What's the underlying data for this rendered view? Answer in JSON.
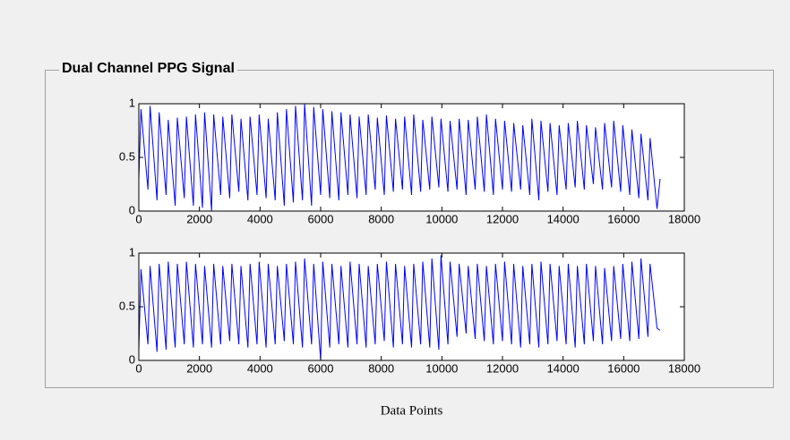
{
  "panel": {
    "title": "Dual Channel PPG Signal"
  },
  "chart_data": [
    {
      "type": "line",
      "xlim": [
        0,
        18000
      ],
      "ylim": [
        0,
        1
      ],
      "xticks": [
        0,
        2000,
        4000,
        6000,
        8000,
        10000,
        12000,
        14000,
        16000,
        18000
      ],
      "yticks": [
        0,
        0.5,
        1
      ],
      "x": [
        0,
        70,
        300,
        370,
        600,
        670,
        900,
        970,
        1200,
        1270,
        1500,
        1570,
        1800,
        1870,
        2100,
        2170,
        2400,
        2470,
        2700,
        2770,
        3000,
        3070,
        3300,
        3370,
        3600,
        3670,
        3900,
        3970,
        4200,
        4270,
        4500,
        4570,
        4800,
        4870,
        5100,
        5170,
        5400,
        5470,
        5700,
        5770,
        6000,
        6070,
        6300,
        6370,
        6600,
        6670,
        6900,
        6970,
        7200,
        7270,
        7500,
        7570,
        7800,
        7870,
        8100,
        8170,
        8400,
        8470,
        8700,
        8770,
        9000,
        9070,
        9300,
        9370,
        9600,
        9670,
        9900,
        9970,
        10200,
        10270,
        10500,
        10570,
        10800,
        10870,
        11100,
        11170,
        11400,
        11470,
        11700,
        11770,
        12000,
        12070,
        12300,
        12370,
        12600,
        12670,
        12900,
        12970,
        13200,
        13270,
        13500,
        13570,
        13800,
        13870,
        14100,
        14170,
        14400,
        14470,
        14700,
        14770,
        15000,
        15070,
        15300,
        15370,
        15600,
        15670,
        15900,
        15970,
        16200,
        16270,
        16500,
        16570,
        16800,
        16870,
        17100,
        17200
      ],
      "series": [
        {
          "color": "#0000ff",
          "values": [
            0.3,
            0.95,
            0.2,
            0.98,
            0.1,
            0.92,
            0.15,
            0.85,
            0.05,
            0.87,
            0.12,
            0.88,
            0.05,
            0.9,
            0.03,
            0.92,
            0.0,
            0.9,
            0.15,
            0.88,
            0.12,
            0.9,
            0.18,
            0.86,
            0.1,
            0.88,
            0.15,
            0.9,
            0.12,
            0.86,
            0.1,
            0.92,
            0.05,
            0.95,
            0.08,
            0.98,
            0.1,
            1.0,
            0.05,
            0.97,
            0.15,
            0.95,
            0.12,
            0.93,
            0.1,
            0.92,
            0.15,
            0.9,
            0.12,
            0.88,
            0.15,
            0.9,
            0.2,
            0.87,
            0.15,
            0.89,
            0.18,
            0.86,
            0.2,
            0.88,
            0.15,
            0.9,
            0.18,
            0.85,
            0.2,
            0.88,
            0.22,
            0.86,
            0.18,
            0.84,
            0.2,
            0.86,
            0.15,
            0.85,
            0.2,
            0.88,
            0.18,
            0.9,
            0.15,
            0.86,
            0.2,
            0.84,
            0.18,
            0.82,
            0.2,
            0.8,
            0.15,
            0.86,
            0.1,
            0.84,
            0.18,
            0.82,
            0.15,
            0.8,
            0.2,
            0.82,
            0.22,
            0.84,
            0.2,
            0.8,
            0.25,
            0.78,
            0.2,
            0.82,
            0.22,
            0.84,
            0.18,
            0.8,
            0.15,
            0.76,
            0.12,
            0.72,
            0.1,
            0.68,
            0.02,
            0.3
          ]
        }
      ]
    },
    {
      "type": "line",
      "xlim": [
        0,
        18000
      ],
      "ylim": [
        0,
        1
      ],
      "xticks": [
        0,
        2000,
        4000,
        6000,
        8000,
        10000,
        12000,
        14000,
        16000,
        18000
      ],
      "yticks": [
        0,
        0.5,
        1
      ],
      "xlabel": "Data Points",
      "x": [
        0,
        70,
        300,
        370,
        600,
        670,
        900,
        970,
        1200,
        1270,
        1500,
        1570,
        1800,
        1870,
        2100,
        2170,
        2400,
        2470,
        2700,
        2770,
        3000,
        3070,
        3300,
        3370,
        3600,
        3670,
        3900,
        3970,
        4200,
        4270,
        4500,
        4570,
        4800,
        4870,
        5100,
        5170,
        5400,
        5470,
        5700,
        5770,
        6000,
        6070,
        6300,
        6370,
        6600,
        6670,
        6900,
        6970,
        7200,
        7270,
        7500,
        7570,
        7800,
        7870,
        8100,
        8170,
        8400,
        8470,
        8700,
        8770,
        9000,
        9070,
        9300,
        9370,
        9600,
        9670,
        9900,
        9970,
        10200,
        10270,
        10500,
        10570,
        10800,
        10870,
        11100,
        11170,
        11400,
        11470,
        11700,
        11770,
        12000,
        12070,
        12300,
        12370,
        12600,
        12670,
        12900,
        12970,
        13200,
        13270,
        13500,
        13570,
        13800,
        13870,
        14100,
        14170,
        14400,
        14470,
        14700,
        14770,
        15000,
        15070,
        15300,
        15370,
        15600,
        15670,
        15900,
        15970,
        16200,
        16270,
        16500,
        16570,
        16800,
        16870,
        17100,
        17200
      ],
      "series": [
        {
          "color": "#0000ff",
          "values": [
            0.1,
            0.85,
            0.15,
            0.88,
            0.08,
            0.9,
            0.1,
            0.92,
            0.12,
            0.9,
            0.15,
            0.92,
            0.12,
            0.9,
            0.15,
            0.88,
            0.12,
            0.9,
            0.15,
            0.88,
            0.18,
            0.9,
            0.15,
            0.88,
            0.12,
            0.9,
            0.15,
            0.92,
            0.12,
            0.9,
            0.15,
            0.88,
            0.18,
            0.9,
            0.15,
            0.92,
            0.12,
            0.95,
            0.15,
            0.9,
            0.0,
            0.92,
            0.12,
            0.9,
            0.15,
            0.88,
            0.12,
            0.92,
            0.15,
            0.9,
            0.12,
            0.88,
            0.15,
            0.9,
            0.18,
            0.92,
            0.12,
            0.9,
            0.15,
            0.88,
            0.12,
            0.9,
            0.15,
            0.92,
            0.12,
            0.95,
            0.1,
            0.98,
            0.15,
            0.92,
            0.22,
            0.9,
            0.25,
            0.88,
            0.2,
            0.9,
            0.18,
            0.88,
            0.15,
            0.9,
            0.18,
            0.92,
            0.15,
            0.9,
            0.12,
            0.88,
            0.15,
            0.9,
            0.12,
            0.92,
            0.15,
            0.9,
            0.18,
            0.88,
            0.15,
            0.9,
            0.12,
            0.88,
            0.15,
            0.9,
            0.18,
            0.88,
            0.15,
            0.86,
            0.18,
            0.88,
            0.2,
            0.9,
            0.18,
            0.92,
            0.2,
            0.95,
            0.22,
            0.9,
            0.3,
            0.28
          ]
        }
      ]
    }
  ]
}
